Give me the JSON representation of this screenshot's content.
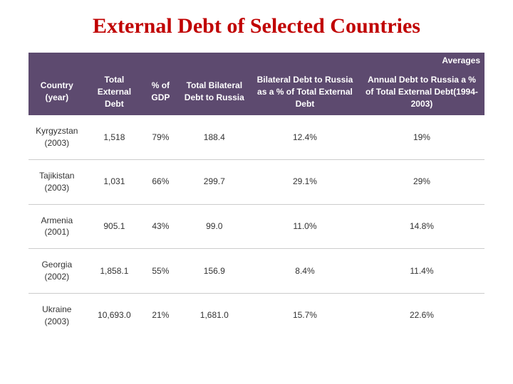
{
  "title": "External Debt of Selected Countries",
  "table": {
    "averages_label": "Averages",
    "columns": [
      "Country (year)",
      "Total External Debt",
      "% of GDP",
      "Total Bilateral Debt to Russia",
      "Bilateral Debt to Russia as a % of Total External Debt",
      "Annual Debt to Russia a % of Total External Debt(1994-2003)"
    ],
    "rows": [
      {
        "country": "Kyrgyzstan",
        "year": "(2003)",
        "total_ext": "1,518",
        "pct_gdp": "79%",
        "bilateral": "188.4",
        "bilateral_pct": "12.4%",
        "annual_pct": "19%"
      },
      {
        "country": "Tajikistan",
        "year": "(2003)",
        "total_ext": "1,031",
        "pct_gdp": "66%",
        "bilateral": "299.7",
        "bilateral_pct": "29.1%",
        "annual_pct": "29%"
      },
      {
        "country": "Armenia",
        "year": "(2001)",
        "total_ext": "905.1",
        "pct_gdp": "43%",
        "bilateral": "99.0",
        "bilateral_pct": "11.0%",
        "annual_pct": "14.8%"
      },
      {
        "country": "Georgia",
        "year": "(2002)",
        "total_ext": "1,858.1",
        "pct_gdp": "55%",
        "bilateral": "156.9",
        "bilateral_pct": "8.4%",
        "annual_pct": "11.4%"
      },
      {
        "country": "Ukraine",
        "year": "(2003)",
        "total_ext": "10,693.0",
        "pct_gdp": "21%",
        "bilateral": "1,681.0",
        "bilateral_pct": "15.7%",
        "annual_pct": "22.6%"
      }
    ],
    "header_bg": "#5d4a6f",
    "title_color": "#c00000",
    "row_border_color": "#cccccc"
  }
}
